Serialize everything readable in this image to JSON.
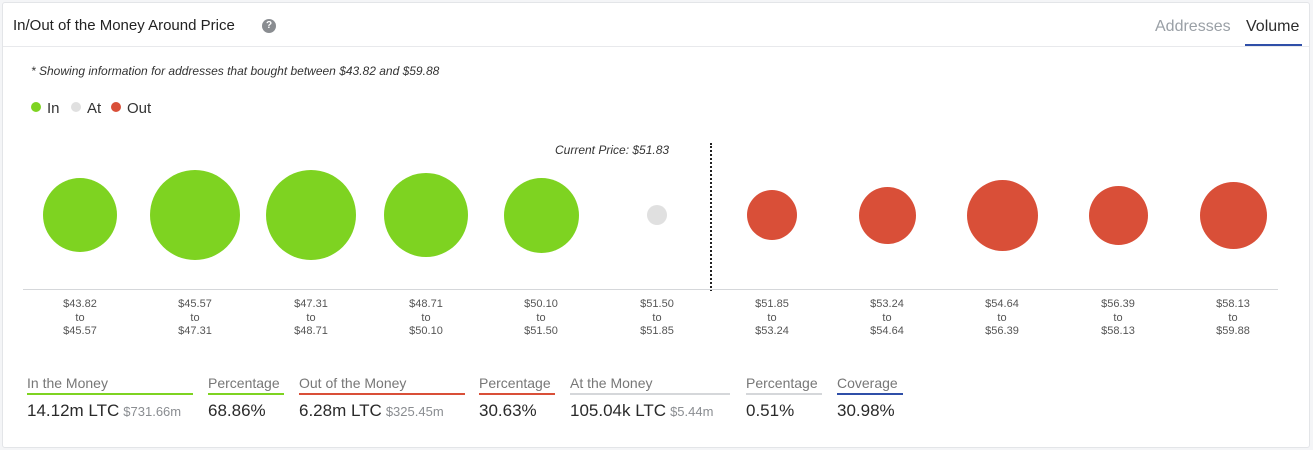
{
  "header": {
    "title": "In/Out of the Money Around Price",
    "help_icon": "?",
    "tabs": [
      {
        "label": "Addresses",
        "active": false
      },
      {
        "label": "Volume",
        "active": true
      }
    ]
  },
  "note": "* Showing information for addresses that bought between $43.82 and $59.88",
  "legend": [
    {
      "label": "In",
      "color": "#7ed321"
    },
    {
      "label": "At",
      "color": "#e0e0e0"
    },
    {
      "label": "Out",
      "color": "#d94f38"
    }
  ],
  "current_price_label": "Current Price: $51.83",
  "chart_data": {
    "type": "bubble",
    "ranges": [
      {
        "from": "$43.82",
        "to": "$45.57",
        "status": "in",
        "relative_size": 0.82
      },
      {
        "from": "$45.57",
        "to": "$47.31",
        "status": "in",
        "relative_size": 1.0
      },
      {
        "from": "$47.31",
        "to": "$48.71",
        "status": "in",
        "relative_size": 1.0
      },
      {
        "from": "$48.71",
        "to": "$50.10",
        "status": "in",
        "relative_size": 0.93
      },
      {
        "from": "$50.10",
        "to": "$51.50",
        "status": "in",
        "relative_size": 0.83
      },
      {
        "from": "$51.50",
        "to": "$51.85",
        "status": "at",
        "relative_size": 0.22
      },
      {
        "from": "$51.85",
        "to": "$53.24",
        "status": "out",
        "relative_size": 0.55
      },
      {
        "from": "$53.24",
        "to": "$54.64",
        "status": "out",
        "relative_size": 0.63
      },
      {
        "from": "$54.64",
        "to": "$56.39",
        "status": "out",
        "relative_size": 0.79
      },
      {
        "from": "$56.39",
        "to": "$58.13",
        "status": "out",
        "relative_size": 0.66
      },
      {
        "from": "$58.13",
        "to": "$59.88",
        "status": "out",
        "relative_size": 0.74
      }
    ],
    "range_connector": "to",
    "current_price": 51.83
  },
  "stats": [
    {
      "label": "In the Money",
      "value": "14.12m LTC",
      "sub": "$731.66m",
      "color": "#7ed321"
    },
    {
      "label": "Percentage",
      "value": "68.86%",
      "sub": "",
      "color": "#7ed321"
    },
    {
      "label": "Out of the Money",
      "value": "6.28m LTC",
      "sub": "$325.45m",
      "color": "#d94f38"
    },
    {
      "label": "Percentage",
      "value": "30.63%",
      "sub": "",
      "color": "#d94f38"
    },
    {
      "label": "At the Money",
      "value": "105.04k LTC",
      "sub": "$5.44m",
      "color": "#d5d7da"
    },
    {
      "label": "Percentage",
      "value": "0.51%",
      "sub": "",
      "color": "#d5d7da"
    },
    {
      "label": "Coverage",
      "value": "30.98%",
      "sub": "",
      "color": "#2f4fa8"
    }
  ]
}
